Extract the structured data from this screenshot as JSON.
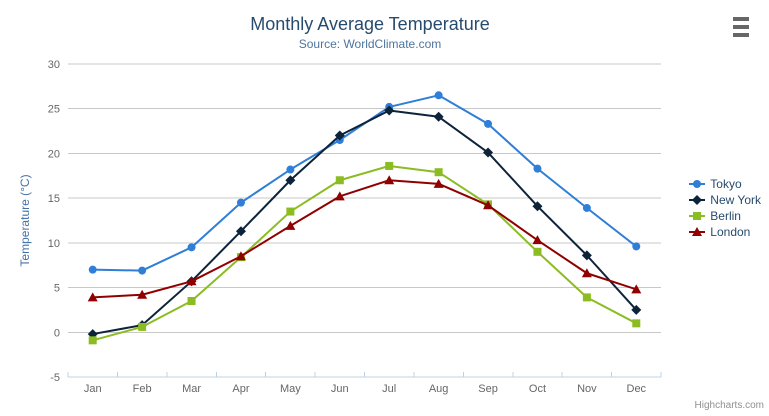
{
  "credits": "Highcharts.com",
  "chart_data": {
    "type": "line",
    "title": "Monthly Average Temperature",
    "subtitle": "Source: WorldClimate.com",
    "categories": [
      "Jan",
      "Feb",
      "Mar",
      "Apr",
      "May",
      "Jun",
      "Jul",
      "Aug",
      "Sep",
      "Oct",
      "Nov",
      "Dec"
    ],
    "series": [
      {
        "name": "Tokyo",
        "color": "#2f7ed8",
        "marker": "circle",
        "values": [
          7.0,
          6.9,
          9.5,
          14.5,
          18.2,
          21.5,
          25.2,
          26.5,
          23.3,
          18.3,
          13.9,
          9.6
        ]
      },
      {
        "name": "New York",
        "color": "#0d233a",
        "marker": "diamond",
        "values": [
          -0.2,
          0.8,
          5.7,
          11.3,
          17.0,
          22.0,
          24.8,
          24.1,
          20.1,
          14.1,
          8.6,
          2.5
        ]
      },
      {
        "name": "Berlin",
        "color": "#8bbc21",
        "marker": "square",
        "values": [
          -0.9,
          0.6,
          3.5,
          8.4,
          13.5,
          17.0,
          18.6,
          17.9,
          14.3,
          9.0,
          3.9,
          1.0
        ]
      },
      {
        "name": "London",
        "color": "#910000",
        "marker": "triangle",
        "values": [
          3.9,
          4.2,
          5.7,
          8.5,
          11.9,
          15.2,
          17.0,
          16.6,
          14.2,
          10.3,
          6.6,
          4.8
        ]
      }
    ],
    "xlabel": "",
    "ylabel": "Temperature (°C)",
    "ylim": [
      -5,
      30
    ],
    "ytick_step": 5,
    "grid": true,
    "legend_position": "right-middle"
  },
  "colors": {
    "title": "#274b6d",
    "subtitle": "#4d759e",
    "axis_label": "#666666",
    "axis_line": "#c0d0e0",
    "gridline": "#c8c8c8",
    "yaxis_title": "#4572a7",
    "legend_text": "#274b6d",
    "credits": "#909090"
  }
}
